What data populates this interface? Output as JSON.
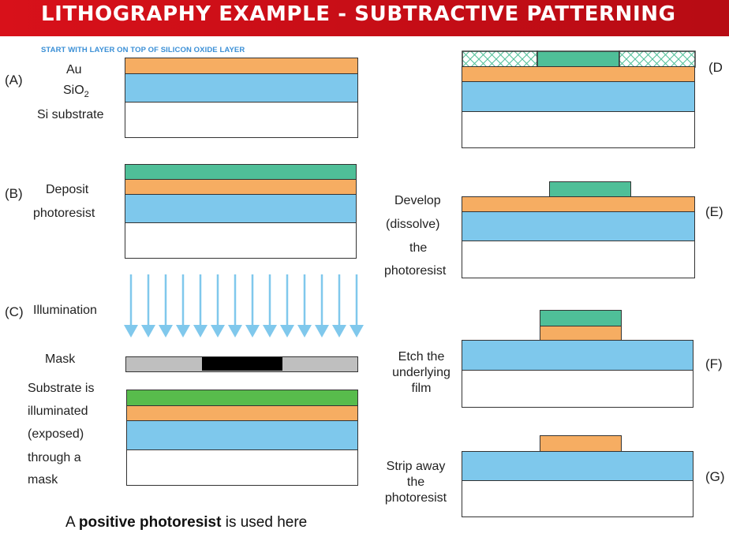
{
  "title": "LITHOGRAPHY EXAMPLE - SUBTRACTIVE PATTERNING",
  "intro_note": "START WITH LAYER ON TOP OF SILICON OXIDE LAYER",
  "layers": {
    "au": "Au",
    "sio2_main": "SiO",
    "sio2_sub": "2",
    "si": "Si substrate"
  },
  "steps": {
    "a": {
      "letter": "(A)"
    },
    "b": {
      "letter": "(B)",
      "text_line1": "Deposit",
      "text_line2": "photoresist"
    },
    "c": {
      "letter": "(C)",
      "text": "Illumination",
      "mask_label": "Mask",
      "exposed_lines": [
        "Substrate is",
        "illuminated",
        "(exposed)",
        "through a",
        "mask"
      ]
    },
    "d": {
      "letter": "(D"
    },
    "e": {
      "letter": "(E)",
      "text_lines": [
        "Develop",
        "(dissolve)",
        "the",
        "photoresist"
      ]
    },
    "f": {
      "letter": "(F)",
      "text_lines": [
        "Etch the",
        "underlying",
        "film"
      ]
    },
    "g": {
      "letter": "(G)",
      "text_lines": [
        "Strip away",
        "the",
        "photoresist"
      ]
    }
  },
  "footer": {
    "prefix": "A ",
    "bold": "positive photoresist",
    "suffix": " is used here"
  },
  "colors": {
    "header": "#d8111a",
    "au": "#f6ad62",
    "sio2": "#7ec8ec",
    "photoresist": "#4fbf98",
    "photoresist_exposed": "#58bc4c",
    "arrow": "#80c8ec",
    "mask_gray": "#bfbfbf",
    "mask_black": "#000000",
    "intro": "#3a8fd6"
  }
}
